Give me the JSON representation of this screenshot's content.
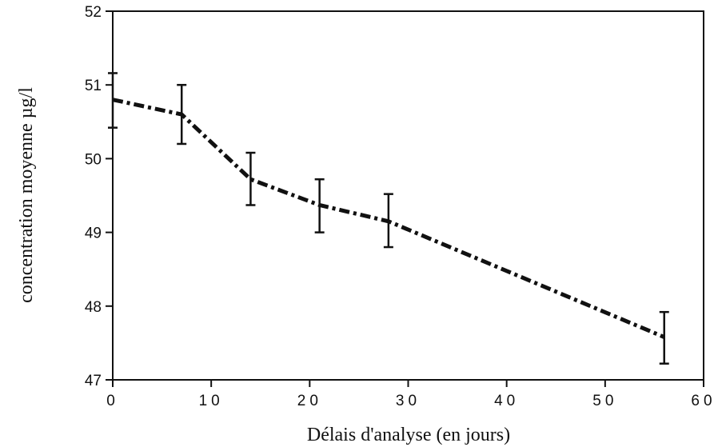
{
  "chart_data": {
    "type": "line",
    "title": "",
    "xlabel": "Délais d'analyse (en jours)",
    "ylabel": "concentration moyenne µg/l",
    "xlim": [
      0,
      60
    ],
    "ylim": [
      47,
      52
    ],
    "xticks": [
      0,
      10,
      20,
      30,
      40,
      50,
      60
    ],
    "yticks": [
      47,
      48,
      49,
      50,
      51,
      52
    ],
    "xtick_labels": [
      "0",
      "10",
      "20",
      "30",
      "40",
      "50",
      "60"
    ],
    "ytick_labels": [
      "47",
      "48",
      "49",
      "50",
      "51",
      "52"
    ],
    "grid": false,
    "legend": "none",
    "line_style": "dash-dot",
    "color": "#111111",
    "series": [
      {
        "x": [
          0,
          7,
          14,
          21,
          28,
          56
        ],
        "y": [
          50.8,
          50.6,
          49.72,
          49.37,
          49.15,
          47.58
        ],
        "error_low": [
          50.42,
          50.2,
          49.37,
          49.0,
          48.8,
          47.22
        ],
        "error_high": [
          51.16,
          51.0,
          50.08,
          49.72,
          49.52,
          47.92
        ]
      }
    ]
  }
}
